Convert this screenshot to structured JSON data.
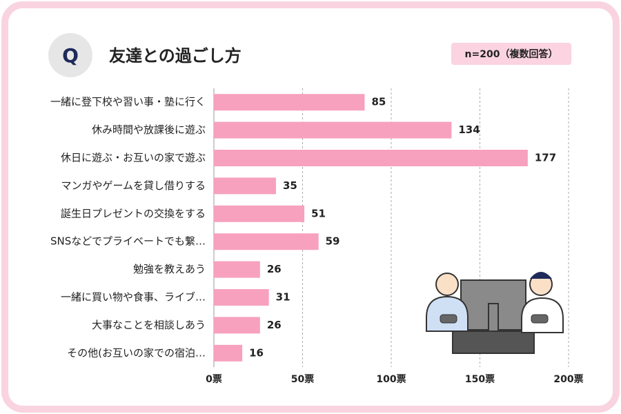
{
  "chart_data": {
    "type": "bar",
    "orientation": "horizontal",
    "q_badge": "Q",
    "title": "友達との過ごし方",
    "subtitle": "n=200（複数回答）",
    "categories": [
      "一緒に登下校や習い事・塾に行く",
      "休み時間や放課後に遊ぶ",
      "休日に遊ぶ・お互いの家で遊ぶ",
      "マンガやゲームを貸し借りする",
      "誕生日プレゼントの交換をする",
      "SNSなどでプライベートでも繋…",
      "勉強を教えあう",
      "一緒に買い物や食事、ライブ…",
      "大事なことを相談しあう",
      "その他(お互いの家での宿泊…"
    ],
    "values": [
      85,
      134,
      177,
      35,
      51,
      59,
      26,
      31,
      26,
      16
    ],
    "color": "#f7a1bf",
    "xlim": [
      0,
      200
    ],
    "xticks": [
      {
        "value": 0,
        "label": "0票"
      },
      {
        "value": 50,
        "label": "50票"
      },
      {
        "value": 100,
        "label": "100票"
      },
      {
        "value": 150,
        "label": "150票"
      },
      {
        "value": 200,
        "label": "200票"
      }
    ],
    "grid": true
  }
}
